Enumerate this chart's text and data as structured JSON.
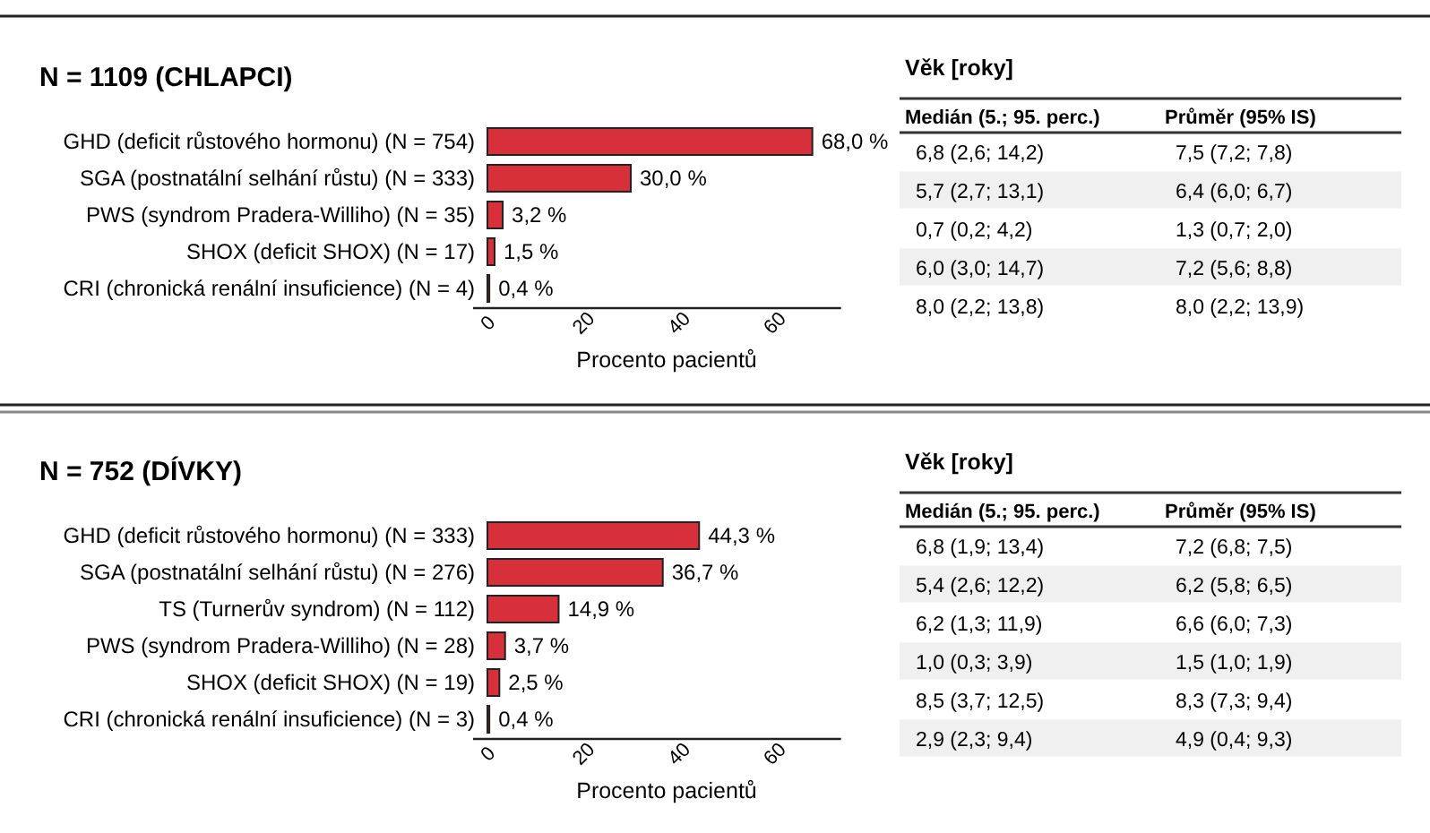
{
  "chart_data": [
    {
      "type": "bar",
      "orientation": "horizontal",
      "title": "N = 1109 (CHLAPCI)",
      "xlabel": "Procento pacientů",
      "categories": [
        "GHD (deficit růstového hormonu)  (N = 754)",
        "SGA (postnatální selhání růstu) (N = 333)",
        "PWS (syndrom Pradera-Williho) (N = 35)",
        "SHOX (deficit SHOX) (N = 17)",
        "CRI (chronická renální insuficience) (N = 4)"
      ],
      "values": [
        68.0,
        30.0,
        3.2,
        1.5,
        0.4
      ],
      "value_labels": [
        "68,0 %",
        "30,0 %",
        "3,2 %",
        "1,5 %",
        "0,4 %"
      ],
      "color": "#d7303b",
      "xlim": [
        0,
        74
      ],
      "xticks": [
        0,
        20,
        40,
        60
      ]
    },
    {
      "type": "other",
      "title": "Věk [roky]",
      "categories": [
        "Medián (5.; 95. perc.)",
        "Průměr (95% IS)"
      ],
      "cell_labels": [
        [
          "6,8 (2,6; 14,2)",
          "7,5 (7,2;  7,8)"
        ],
        [
          "5,7 (2,7; 13,1)",
          "6,4 (6,0;  6,7)"
        ],
        [
          "0,7 (0,2; 4,2)",
          "1,3 (0,7;  2,0)"
        ],
        [
          "6,0 (3,0; 14,7)",
          "7,2 (5,6;  8,8)"
        ],
        [
          "8,0 (2,2; 13,8)",
          "8,0 (2,2; 13,9)"
        ]
      ]
    },
    {
      "type": "bar",
      "orientation": "horizontal",
      "title": "N = 752 (DÍVKY)",
      "xlabel": "Procento pacientů",
      "categories": [
        "GHD (deficit růstového hormonu)  (N = 333)",
        "SGA (postnatální selhání růstu) (N = 276)",
        "TS (Turnerův syndrom) (N = 112)",
        "PWS (syndrom Pradera-Williho) (N = 28)",
        "SHOX (deficit SHOX) (N = 19)",
        "CRI (chronická renální insuficience) (N = 3)"
      ],
      "values": [
        44.3,
        36.7,
        14.9,
        3.7,
        2.5,
        0.4
      ],
      "value_labels": [
        "44,3 %",
        "36,7 %",
        "14,9 %",
        "3,7 %",
        "2,5 %",
        "0,4 %"
      ],
      "color": "#d7303b",
      "xlim": [
        0,
        74
      ],
      "xticks": [
        0,
        20,
        40,
        60
      ]
    },
    {
      "type": "other",
      "title": "Věk [roky]",
      "categories": [
        "Medián (5.; 95. perc.)",
        "Průměr (95% IS)"
      ],
      "cell_labels": [
        [
          "6,8 (1,9; 13,4)",
          "7,2 (6,8; 7,5)"
        ],
        [
          "5,4 (2,6; 12,2)",
          "6,2 (5,8; 6,5)"
        ],
        [
          "6,2 (1,3; 11,9)",
          "6,6 (6,0; 7,3)"
        ],
        [
          "1,0 (0,3;  3,9)",
          "1,5 (1,0; 1,9)"
        ],
        [
          "8,5 (3,7; 12,5)",
          "8,3 (7,3; 9,4)"
        ],
        [
          "2,9 (2,3;  9,4)",
          "4,9 (0,4; 9,3)"
        ]
      ]
    }
  ]
}
